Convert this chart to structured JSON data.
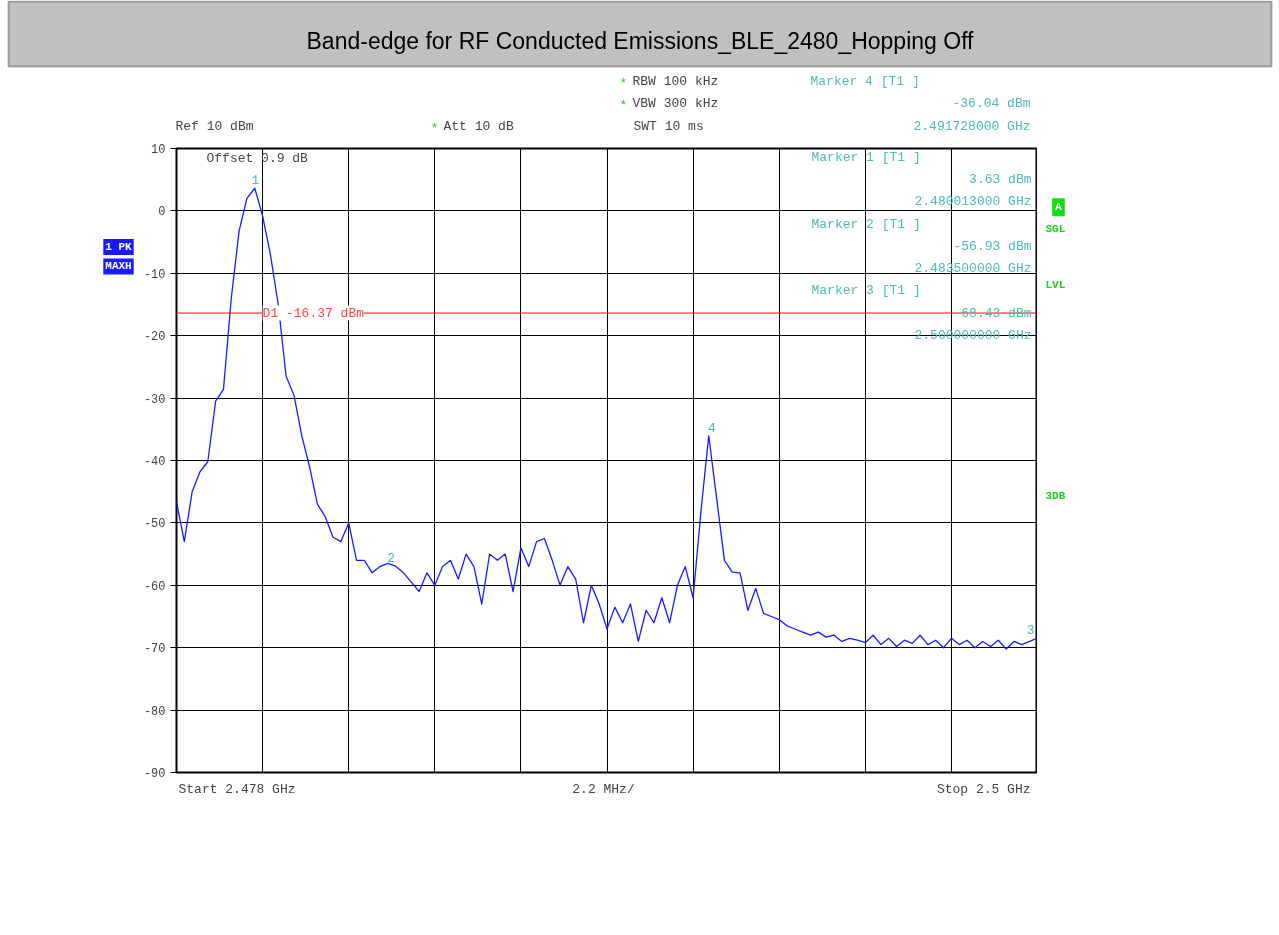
{
  "chart_data": {
    "type": "line",
    "title": "Band-edge for RF Conducted Emissions_BLE_2480_Hopping Off",
    "categories": [
      null,
      null,
      null,
      null,
      null,
      null,
      null,
      null,
      null,
      null,
      null,
      null,
      null,
      null,
      null,
      null,
      null,
      null,
      null,
      null,
      null,
      null,
      null,
      null,
      null,
      null,
      null,
      null,
      null,
      null,
      null,
      null,
      null,
      null,
      null,
      null,
      null,
      null,
      null,
      null,
      null,
      null,
      null,
      null,
      null,
      null,
      null,
      null,
      null,
      null,
      null,
      null,
      null,
      null,
      null,
      null,
      null,
      null,
      null,
      null,
      null,
      null,
      null,
      null,
      null,
      null,
      null,
      null,
      null,
      null,
      null,
      null,
      null,
      null,
      null,
      null,
      null,
      null,
      null,
      null,
      null,
      null,
      null,
      null,
      null,
      null,
      null,
      null,
      null,
      null,
      null,
      null,
      null,
      null,
      null,
      null,
      null,
      null,
      null,
      null,
      null,
      null,
      null,
      null,
      null,
      null,
      null,
      null,
      null,
      null,
      null
    ],
    "series": [
      {
        "color": "#1a1aff",
        "values": [
          -46.6,
          -53.0,
          -45,
          -41.8,
          -40.2,
          -30.5,
          -28.6,
          -14,
          -3.2,
          2.0,
          3.63,
          -0.8,
          -7,
          -15,
          -26.5,
          -29.5,
          -36,
          -41,
          -47,
          -49,
          -52.3,
          -53,
          -50,
          -56,
          -56,
          -58,
          -57,
          -56.5,
          -56.93,
          -58,
          -59.5,
          -61,
          -58,
          -60,
          -57,
          -56,
          -59,
          -55,
          -57,
          -63,
          -55,
          -56,
          -55,
          -61,
          -54,
          -57,
          -53,
          -52.5,
          -56,
          -60,
          -57,
          -59,
          -66,
          -60,
          -63,
          -67,
          -63.5,
          -66,
          -63,
          -69,
          -64,
          -66,
          -62,
          -66,
          -60,
          -57,
          -62,
          -48.2,
          -36.04,
          -46,
          -56,
          -57.9,
          -58,
          -64,
          -60.5,
          -64.5,
          -65,
          -65.5,
          -66.5,
          -67,
          -67.5,
          -68,
          -67.5,
          -68.3,
          -68,
          -69,
          -68.5,
          -68.8,
          -69.2,
          -68,
          -69.5,
          -68.5,
          -69.8,
          -68.8,
          -69.3,
          -68,
          -69.5,
          -68.8,
          -70,
          -68.5,
          -69.5,
          -68.8,
          -70,
          -69,
          -69.8,
          -68.8,
          -70.2,
          -69,
          -69.5,
          -69,
          -68.43
        ]
      }
    ],
    "ylim": [
      -90,
      10
    ],
    "yticks": [
      -90,
      -80,
      -70,
      -60,
      -50,
      -40,
      -30,
      -20,
      -10,
      0,
      10
    ],
    "tick_labels": "y",
    "grid": true,
    "ref_lines": [
      {
        "axis": "y",
        "value": -16.37,
        "label": "D1 -16.37 dBm",
        "color": "#ff0000"
      }
    ],
    "annotations": [
      "*",
      "RBW 100 kHz",
      "*",
      "VBW 300 kHz",
      "Ref 10 dBm",
      "*",
      "Att 10 dB",
      "SWT 10 ms",
      "Offset 0.9 dB",
      "Marker 4 [T1 ]",
      "-36.04 dBm",
      "2.491728000 GHz",
      "Marker 1 [T1 ]",
      "3.63 dBm",
      "2.480013000 GHz",
      "Marker 2 [T1 ]",
      "-56.93 dBm",
      "2.483500000 GHz",
      "Marker 3 [T1 ]",
      "-68.43 dBm",
      "2.500000000 GHz",
      "1 PK",
      "MAXH",
      "A",
      "SGL",
      "LVL",
      "3DB",
      "Start 2.478 GHz",
      "2.2 MHz/",
      "Stop 2.5 GHz",
      {
        "text": "1",
        "y": 3.63
      },
      {
        "text": "2",
        "y": -56.93
      },
      {
        "text": "3",
        "y": -68.43
      },
      {
        "text": "4",
        "y": -36.04
      }
    ]
  }
}
